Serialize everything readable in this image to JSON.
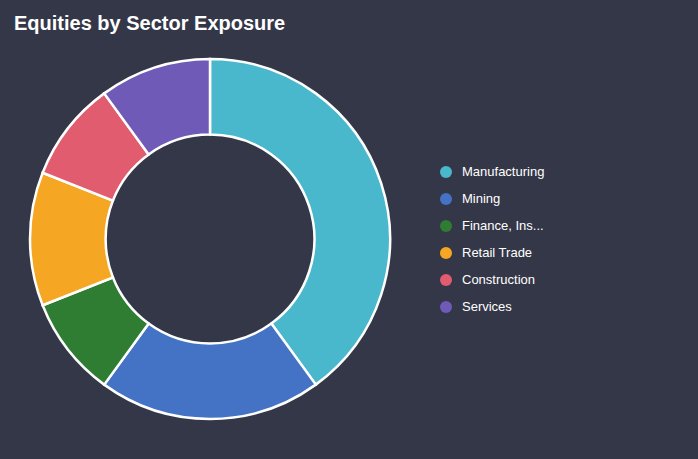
{
  "chart_data": {
    "type": "pie",
    "title": "Equities by Sector Exposure",
    "categories": [
      "Manufacturing",
      "Mining",
      "Finance, Ins...",
      "Retail Trade",
      "Construction",
      "Services"
    ],
    "values": [
      40,
      20,
      9,
      12,
      9,
      10
    ],
    "colors": [
      "#4ab8cc",
      "#4472c4",
      "#2e7d32",
      "#f5a623",
      "#e05c6e",
      "#6f5ab8"
    ],
    "legend": "right"
  }
}
